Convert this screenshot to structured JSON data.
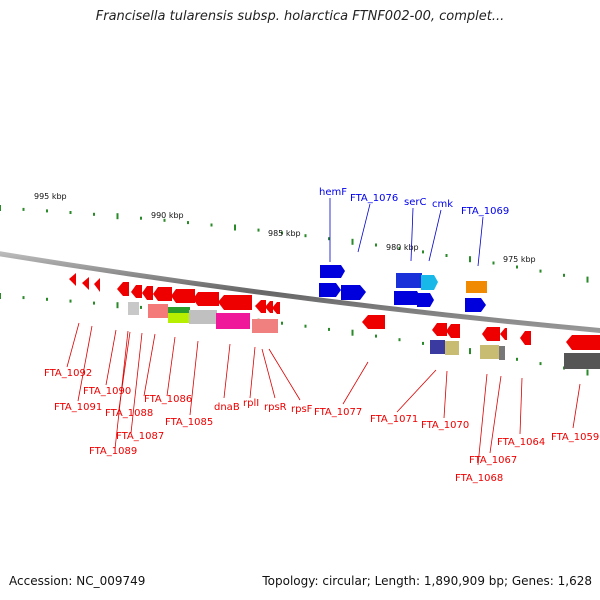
{
  "title": "Francisella tularensis subsp. holarctica FTNF002-00, complet...",
  "footer": {
    "accession": "Accession: NC_009749",
    "topology": "Topology: circular; Length: 1,890,909 bp; Genes: 1,628"
  },
  "ruler_labels": [
    "995 kbp",
    "990 kbp",
    "985 kbp",
    "980 kbp",
    "975 kbp"
  ],
  "forward_labels": [
    "hemF",
    "FTA_1076",
    "serC",
    "cmk",
    "FTA_1069"
  ],
  "reverse_labels": [
    "FTA_1092",
    "FTA_1091",
    "FTA_1090",
    "FTA_1088",
    "FTA_1089",
    "FTA_1087",
    "FTA_1086",
    "FTA_1085",
    "dnaB",
    "rplI",
    "rpsR",
    "rpsF",
    "FTA_1077",
    "FTA_1071",
    "FTA_1070",
    "FTA_1067",
    "FTA_1068",
    "FTA_1064",
    "FTA_1059"
  ],
  "colors": {
    "forward": "#0000ee",
    "reverse": "#ee0000",
    "backbone": "#888888",
    "ticks": "#2a8a2a"
  }
}
